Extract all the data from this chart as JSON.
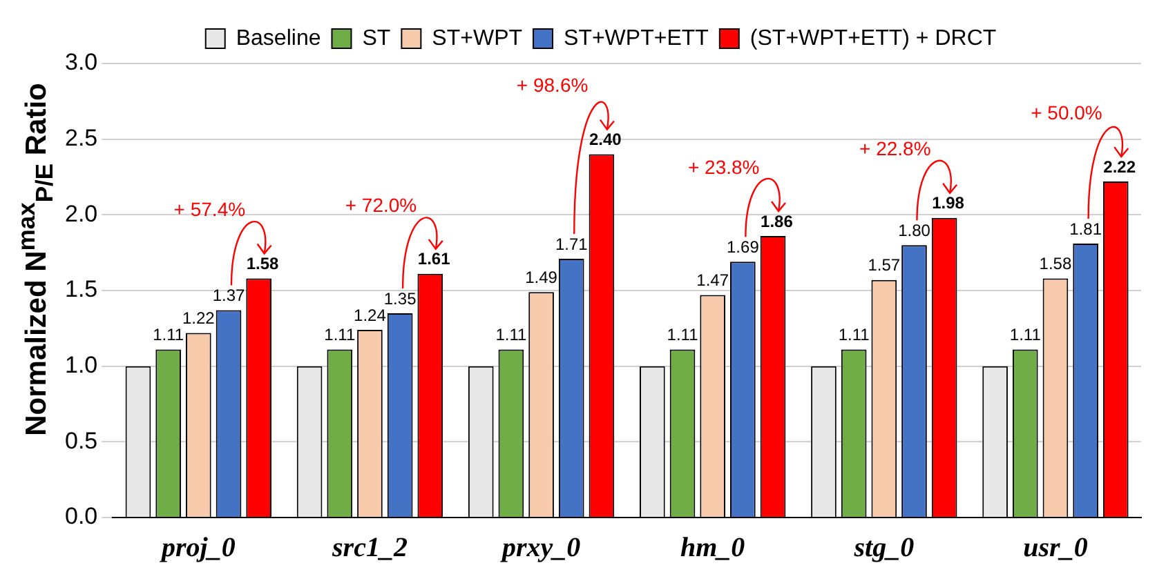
{
  "chart_data": {
    "type": "bar",
    "ylabel": "Normalized N$^{max}$$_{P/E}$ Ratio",
    "categories": [
      "proj_0",
      "src1_2",
      "prxy_0",
      "hm_0",
      "stg_0",
      "usr_0"
    ],
    "series": [
      {
        "name": "Baseline",
        "color": "#e8e8e8",
        "values": [
          1.0,
          1.0,
          1.0,
          1.0,
          1.0,
          1.0
        ],
        "value_labels": [
          null,
          null,
          null,
          null,
          null,
          null
        ]
      },
      {
        "name": "ST",
        "color": "#70ad47",
        "values": [
          1.11,
          1.11,
          1.11,
          1.11,
          1.11,
          1.11
        ],
        "value_labels": [
          "1.11",
          "1.11",
          "1.11",
          "1.11",
          "1.11",
          "1.11"
        ]
      },
      {
        "name": "ST+WPT",
        "color": "#f8cbad",
        "values": [
          1.22,
          1.24,
          1.49,
          1.47,
          1.57,
          1.58
        ],
        "value_labels": [
          "1.22",
          "1.24",
          "1.49",
          "1.47",
          "1.57",
          "1.58"
        ]
      },
      {
        "name": "ST+WPT+ETT",
        "color": "#4472c4",
        "values": [
          1.37,
          1.35,
          1.71,
          1.69,
          1.8,
          1.81
        ],
        "value_labels": [
          "1.37",
          "1.35",
          "1.71",
          "1.69",
          "1.80",
          "1.81"
        ]
      },
      {
        "name": "(ST+WPT+ETT) + DRCT",
        "color": "#ff0000",
        "values": [
          1.58,
          1.61,
          2.4,
          1.86,
          1.98,
          2.22
        ],
        "value_labels": [
          "1.58",
          "1.61",
          "2.40",
          "1.86",
          "1.98",
          "2.22"
        ]
      }
    ],
    "annotations": [
      "+ 57.4%",
      "+ 72.0%",
      "+ 98.6%",
      "+ 23.8%",
      "+ 22.8%",
      "+ 50.0%"
    ],
    "ylim": [
      0,
      3
    ],
    "yticks": [
      {
        "value": 0,
        "label": "0.0"
      },
      {
        "value": 0.5,
        "label": "0.5"
      },
      {
        "value": 1,
        "label": "1.0"
      },
      {
        "value": 1.5,
        "label": "1.5"
      },
      {
        "value": 2,
        "label": "2.0"
      },
      {
        "value": 2.5,
        "label": "2.5"
      },
      {
        "value": 3,
        "label": "3.0"
      }
    ],
    "grid": "y",
    "legend": "top"
  }
}
